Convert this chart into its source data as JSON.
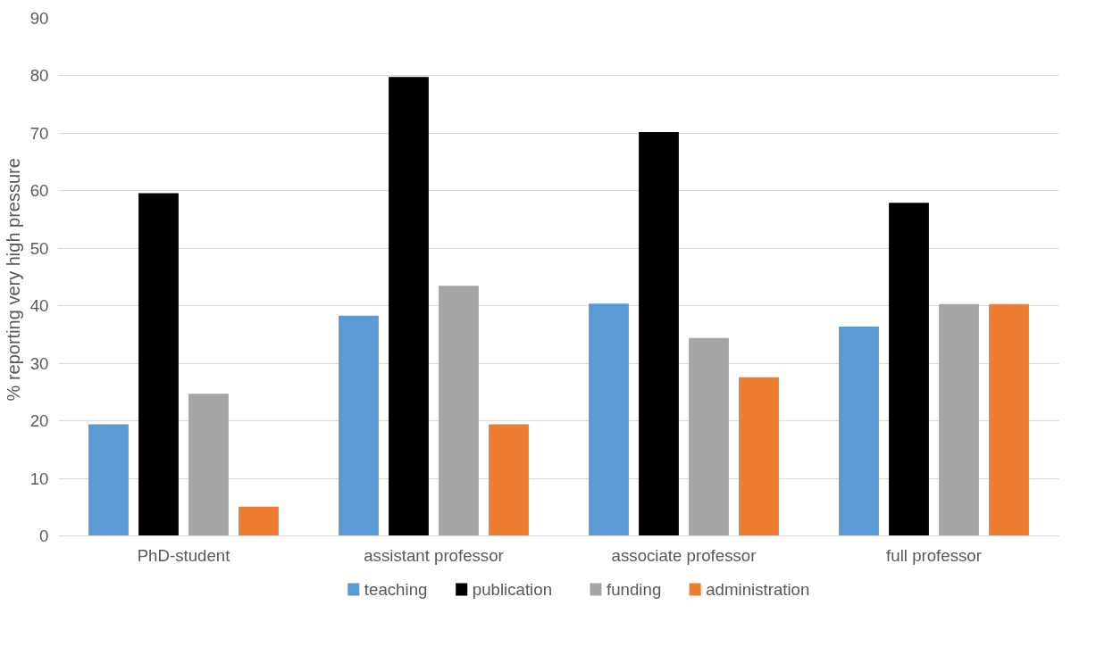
{
  "chart_data": {
    "type": "bar",
    "ylabel": "% reporting  very high pressure",
    "categories": [
      "PhD-student",
      "assistant professor",
      "associate professor",
      "full professor"
    ],
    "series": [
      {
        "name": "teaching",
        "color": "#5b9bd5",
        "values": [
          19.4,
          38.3,
          40.4,
          36.4
        ]
      },
      {
        "name": "publication",
        "color": "#000000",
        "values": [
          59.6,
          79.8,
          70.2,
          57.9
        ]
      },
      {
        "name": "funding",
        "color": "#a5a5a5",
        "values": [
          24.7,
          43.5,
          34.4,
          40.3
        ]
      },
      {
        "name": "administration",
        "color": "#ed7d31",
        "values": [
          5.1,
          19.4,
          27.6,
          40.3
        ]
      }
    ],
    "ylim": [
      0,
      90
    ],
    "yticks": [
      0,
      10,
      20,
      30,
      40,
      50,
      60,
      70,
      80,
      90
    ],
    "grid": "y",
    "legend": "bottom"
  }
}
